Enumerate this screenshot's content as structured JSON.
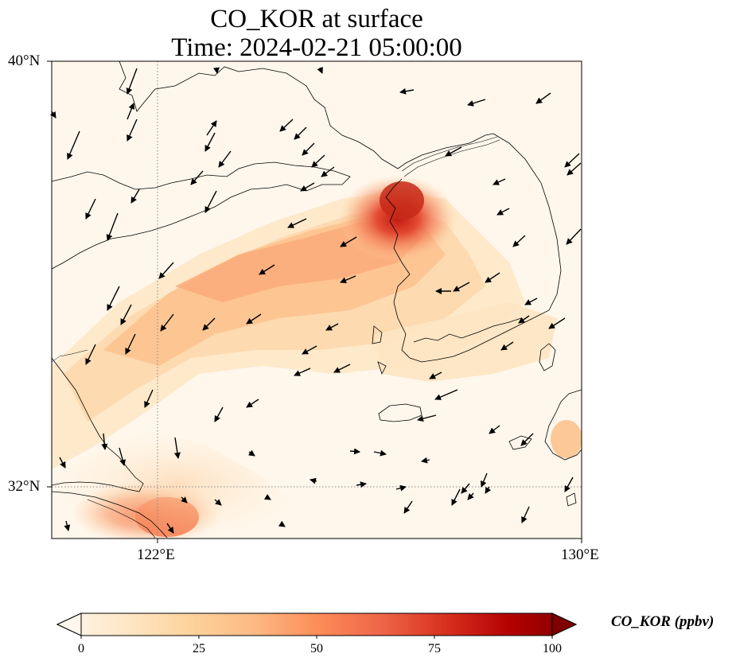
{
  "title": {
    "line1": "CO_KOR at surface",
    "line2": "Time: 2024-02-21 05:00:00"
  },
  "axes": {
    "lat_ticks": [
      "40°N",
      "32°N"
    ],
    "lon_ticks": [
      "122°E",
      "130°E"
    ],
    "lat_range": [
      31.2,
      40.0
    ],
    "lon_range": [
      120.0,
      130.0
    ],
    "gridlines": "dotted at 122°E and 32°N"
  },
  "colorbar": {
    "label": "CO_KOR (ppbv)",
    "ticks": [
      "0",
      "25",
      "50",
      "75",
      "100"
    ],
    "range": [
      0,
      100
    ],
    "colormap": "Oranges-Reds (OrRd)",
    "extend": "both"
  },
  "colors": {
    "low": "#fff7ec",
    "high": "#7f0000"
  },
  "fields": {
    "plume_main": "NE-SW band from Yellow Sea to central Korea, peak ~70 ppbv near Seoul/Incheon",
    "plume_south": "Shanghai area ~45 ppbv"
  }
}
